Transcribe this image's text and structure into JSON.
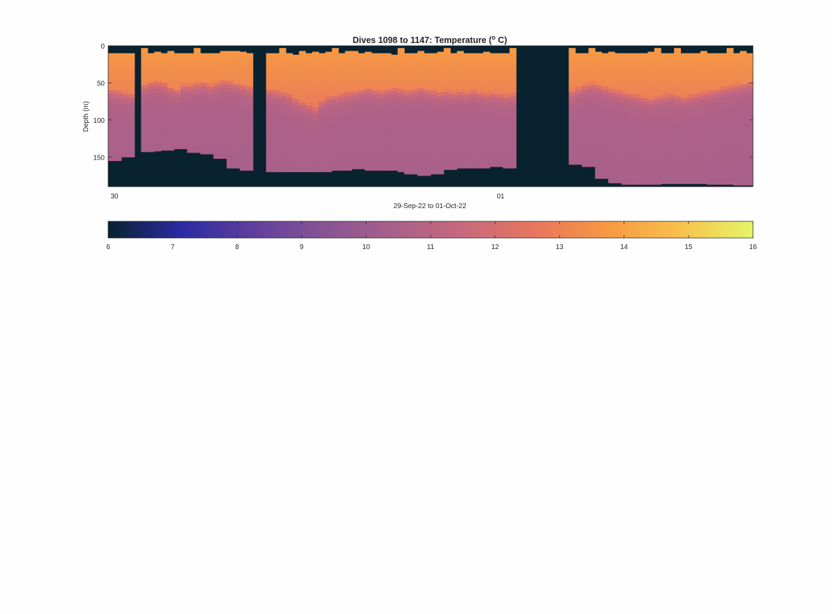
{
  "chart_data": [
    {
      "type": "heatmap",
      "title": "Dives 1098 to 1147: Temperature (° C)",
      "title_parts": {
        "pre": "Dives 1098 to 1147: Temperature (",
        "sup": "o",
        "post": " C)"
      },
      "ylabel": "Depth (m)",
      "xlabel": "29-Sep-22 to 01-Oct-22",
      "x_ticks": [
        "30",
        "01"
      ],
      "y_ticks": [
        0,
        50,
        100,
        150
      ],
      "ylim": [
        0,
        190
      ],
      "y_reversed": true,
      "colormap": [
        "#08222f",
        "#2a2aa2",
        "#5e3e9c",
        "#875395",
        "#a8608a",
        "#c9697c",
        "#e9775d",
        "#f79a43",
        "#f8c24c",
        "#e5f567"
      ],
      "clim": [
        6,
        16
      ],
      "profiles": [
        {
          "surface": 10,
          "bottom": 155,
          "mix": 58
        },
        {
          "surface": 10,
          "bottom": 155,
          "mix": 60
        },
        {
          "surface": 10,
          "bottom": 150,
          "mix": 62
        },
        {
          "surface": 10,
          "bottom": 150,
          "mix": 64
        },
        null,
        {
          "surface": 3,
          "bottom": 143,
          "mix": 52
        },
        {
          "surface": 10,
          "bottom": 143,
          "mix": 48
        },
        {
          "surface": 8,
          "bottom": 142,
          "mix": 48
        },
        {
          "surface": 10,
          "bottom": 141,
          "mix": 50
        },
        {
          "surface": 7,
          "bottom": 141,
          "mix": 55
        },
        {
          "surface": 10,
          "bottom": 139,
          "mix": 58
        },
        {
          "surface": 10,
          "bottom": 139,
          "mix": 52
        },
        {
          "surface": 10,
          "bottom": 144,
          "mix": 52
        },
        {
          "surface": 3,
          "bottom": 144,
          "mix": 50
        },
        {
          "surface": 10,
          "bottom": 146,
          "mix": 48
        },
        {
          "surface": 10,
          "bottom": 146,
          "mix": 52
        },
        {
          "surface": 10,
          "bottom": 152,
          "mix": 50
        },
        {
          "surface": 7,
          "bottom": 152,
          "mix": 47
        },
        {
          "surface": 7,
          "bottom": 165,
          "mix": 48
        },
        {
          "surface": 7,
          "bottom": 165,
          "mix": 50
        },
        {
          "surface": 8,
          "bottom": 168,
          "mix": 52
        },
        {
          "surface": 10,
          "bottom": 168,
          "mix": 55
        },
        null,
        null,
        {
          "surface": 10,
          "bottom": 170,
          "mix": 58
        },
        {
          "surface": 10,
          "bottom": 170,
          "mix": 60
        },
        {
          "surface": 3,
          "bottom": 170,
          "mix": 62
        },
        {
          "surface": 10,
          "bottom": 170,
          "mix": 65
        },
        {
          "surface": 12,
          "bottom": 170,
          "mix": 70
        },
        {
          "surface": 7,
          "bottom": 170,
          "mix": 74
        },
        {
          "surface": 10,
          "bottom": 170,
          "mix": 78
        },
        {
          "surface": 8,
          "bottom": 170,
          "mix": 82
        },
        {
          "surface": 10,
          "bottom": 170,
          "mix": 72
        },
        {
          "surface": 8,
          "bottom": 170,
          "mix": 68
        },
        {
          "surface": 3,
          "bottom": 168,
          "mix": 66
        },
        {
          "surface": 10,
          "bottom": 168,
          "mix": 64
        },
        {
          "surface": 7,
          "bottom": 168,
          "mix": 62
        },
        {
          "surface": 7,
          "bottom": 166,
          "mix": 60
        },
        {
          "surface": 10,
          "bottom": 166,
          "mix": 58
        },
        {
          "surface": 8,
          "bottom": 168,
          "mix": 56
        },
        {
          "surface": 10,
          "bottom": 168,
          "mix": 58
        },
        {
          "surface": 10,
          "bottom": 168,
          "mix": 60
        },
        {
          "surface": 10,
          "bottom": 168,
          "mix": 58
        },
        {
          "surface": 12,
          "bottom": 168,
          "mix": 56
        },
        {
          "surface": 3,
          "bottom": 170,
          "mix": 58
        },
        {
          "surface": 10,
          "bottom": 173,
          "mix": 60
        },
        {
          "surface": 10,
          "bottom": 173,
          "mix": 58
        },
        {
          "surface": 7,
          "bottom": 175,
          "mix": 56
        },
        {
          "surface": 10,
          "bottom": 175,
          "mix": 58
        },
        {
          "surface": 10,
          "bottom": 173,
          "mix": 60
        },
        {
          "surface": 8,
          "bottom": 173,
          "mix": 62
        },
        {
          "surface": 3,
          "bottom": 167,
          "mix": 60
        },
        {
          "surface": 10,
          "bottom": 167,
          "mix": 62
        },
        {
          "surface": 7,
          "bottom": 165,
          "mix": 60
        },
        {
          "surface": 10,
          "bottom": 165,
          "mix": 62
        },
        {
          "surface": 10,
          "bottom": 165,
          "mix": 60
        },
        {
          "surface": 10,
          "bottom": 165,
          "mix": 62
        },
        {
          "surface": 8,
          "bottom": 165,
          "mix": 64
        },
        {
          "surface": 10,
          "bottom": 163,
          "mix": 62
        },
        {
          "surface": 10,
          "bottom": 163,
          "mix": 64
        },
        {
          "surface": 10,
          "bottom": 165,
          "mix": 66
        },
        {
          "surface": 3,
          "bottom": 165,
          "mix": 64
        },
        null,
        null,
        null,
        null,
        null,
        null,
        null,
        null,
        {
          "surface": 3,
          "bottom": 160,
          "mix": 60
        },
        {
          "surface": 10,
          "bottom": 160,
          "mix": 56
        },
        {
          "surface": 10,
          "bottom": 163,
          "mix": 52
        },
        {
          "surface": 3,
          "bottom": 163,
          "mix": 50
        },
        {
          "surface": 8,
          "bottom": 179,
          "mix": 52
        },
        {
          "surface": 10,
          "bottom": 179,
          "mix": 55
        },
        {
          "surface": 8,
          "bottom": 185,
          "mix": 58
        },
        {
          "surface": 10,
          "bottom": 185,
          "mix": 60
        },
        {
          "surface": 10,
          "bottom": 187,
          "mix": 62
        },
        {
          "surface": 10,
          "bottom": 187,
          "mix": 64
        },
        {
          "surface": 10,
          "bottom": 187,
          "mix": 66
        },
        {
          "surface": 10,
          "bottom": 187,
          "mix": 68
        },
        {
          "surface": 8,
          "bottom": 187,
          "mix": 70
        },
        {
          "surface": 3,
          "bottom": 187,
          "mix": 68
        },
        {
          "surface": 10,
          "bottom": 186,
          "mix": 66
        },
        {
          "surface": 10,
          "bottom": 186,
          "mix": 64
        },
        {
          "surface": 3,
          "bottom": 186,
          "mix": 66
        },
        {
          "surface": 10,
          "bottom": 186,
          "mix": 68
        },
        {
          "surface": 10,
          "bottom": 186,
          "mix": 66
        },
        {
          "surface": 10,
          "bottom": 186,
          "mix": 64
        },
        {
          "surface": 7,
          "bottom": 186,
          "mix": 62
        },
        {
          "surface": 10,
          "bottom": 187,
          "mix": 60
        },
        {
          "surface": 10,
          "bottom": 187,
          "mix": 58
        },
        {
          "surface": 10,
          "bottom": 187,
          "mix": 56
        },
        {
          "surface": 3,
          "bottom": 187,
          "mix": 54
        },
        {
          "surface": 10,
          "bottom": 188,
          "mix": 52
        },
        {
          "surface": 7,
          "bottom": 188,
          "mix": 50
        },
        {
          "surface": 10,
          "bottom": 188,
          "mix": 48
        }
      ]
    },
    {
      "type": "colorbar",
      "ticks": [
        6,
        7,
        8,
        9,
        10,
        11,
        12,
        13,
        14,
        15,
        16
      ],
      "range": [
        6,
        16
      ]
    }
  ]
}
